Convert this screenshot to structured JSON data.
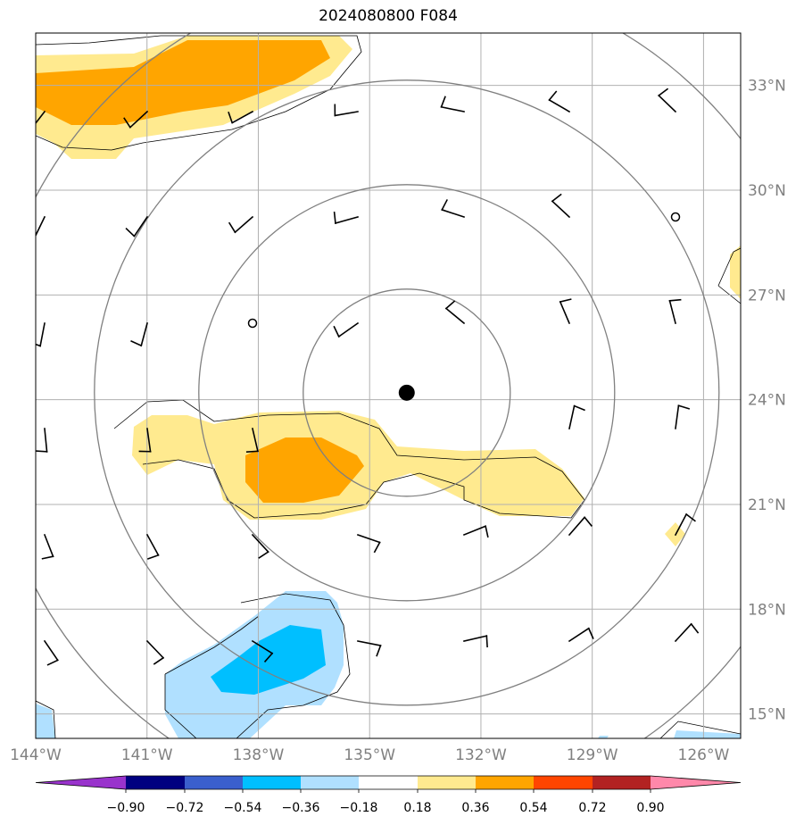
{
  "title": "2024080800 F084",
  "map": {
    "lon_range": [
      -144,
      -125
    ],
    "lat_range": [
      14.3,
      34.5
    ],
    "grid_lons": [
      -144,
      -141,
      -138,
      -135,
      -132,
      -129,
      -126
    ],
    "grid_lats": [
      15,
      18,
      21,
      24,
      27,
      30,
      33
    ],
    "lon_labels": [
      "144°W",
      "141°W",
      "138°W",
      "135°W",
      "132°W",
      "129°W",
      "126°W"
    ],
    "lat_labels": [
      "15°N",
      "18°N",
      "21°N",
      "24°N",
      "27°N",
      "30°N",
      "33°N"
    ],
    "center": {
      "lon": -134.0,
      "lat": 24.2
    }
  },
  "colorbar": {
    "tick_labels": [
      "−0.90",
      "−0.72",
      "−0.54",
      "−0.36",
      "−0.18",
      "0.18",
      "0.36",
      "0.54",
      "0.72",
      "0.90"
    ],
    "colors": [
      "#9933cc",
      "#000080",
      "#3a5fcd",
      "#00bfff",
      "#b0e0ff",
      "#ffffff",
      "#ffea8f",
      "#ffa500",
      "#ff4500",
      "#b22222",
      "#ff88aa"
    ]
  }
}
